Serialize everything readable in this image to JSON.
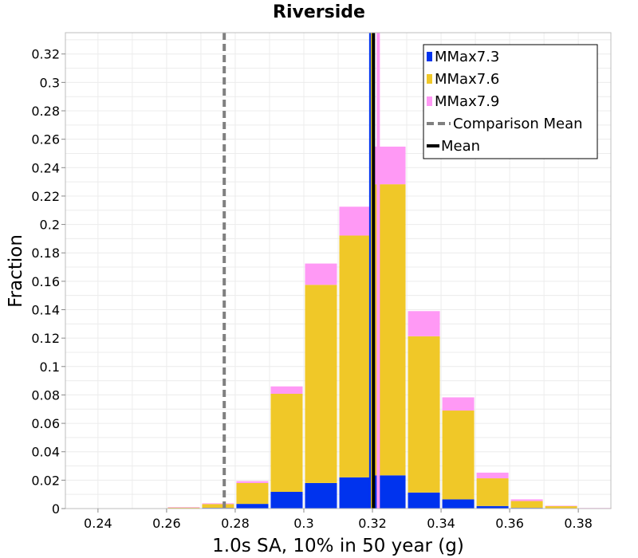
{
  "chart_data": {
    "type": "bar",
    "stacked": true,
    "title": "Riverside",
    "xlabel": "1.0s SA, 10% in 50 year (g)",
    "ylabel": "Fraction",
    "xlim": [
      0.2305,
      0.3895
    ],
    "ylim": [
      0,
      0.335
    ],
    "x_ticks": [
      "0.24",
      "0.26",
      "0.28",
      "0.3",
      "0.32",
      "0.34",
      "0.36",
      "0.38"
    ],
    "y_ticks": [
      "0",
      "0.02",
      "0.04",
      "0.06",
      "0.08",
      "0.1",
      "0.12",
      "0.14",
      "0.16",
      "0.18",
      "0.2",
      "0.22",
      "0.24",
      "0.26",
      "0.28",
      "0.3",
      "0.32"
    ],
    "grid": true,
    "legend_position": "top-right",
    "bin_width": 0.01,
    "x": [
      0.235,
      0.245,
      0.255,
      0.265,
      0.275,
      0.285,
      0.295,
      0.305,
      0.315,
      0.325,
      0.335,
      0.345,
      0.355,
      0.365,
      0.375,
      0.385
    ],
    "series": [
      {
        "name": "MMax7.3",
        "color": "#0033ee",
        "values": [
          0,
          0,
          0,
          0.0003,
          0.0005,
          0.0033,
          0.0118,
          0.018,
          0.022,
          0.0234,
          0.0113,
          0.0065,
          0.0018,
          0.0005,
          0.0002,
          0
        ]
      },
      {
        "name": "MMax7.6",
        "color": "#f0c828",
        "values": [
          0,
          0,
          0,
          0.0005,
          0.0027,
          0.0147,
          0.069,
          0.1395,
          0.1702,
          0.2049,
          0.11,
          0.0625,
          0.0195,
          0.0048,
          0.0015,
          0.0003
        ]
      },
      {
        "name": "MMax7.9",
        "color": "#ff99f5",
        "values": [
          0,
          0,
          0,
          0.0002,
          0.0005,
          0.0013,
          0.0052,
          0.015,
          0.0203,
          0.0265,
          0.0177,
          0.0093,
          0.004,
          0.0012,
          0.0003,
          0.0001
        ]
      }
    ],
    "vertical_lines": [
      {
        "name": "Comparison Mean",
        "x": 0.2768,
        "style": "dashed",
        "color": "#808080"
      },
      {
        "name": "Mean",
        "x": 0.3203,
        "style": "solid",
        "color": "#000000"
      }
    ],
    "series_means": [
      {
        "series": "MMax7.3",
        "x": 0.3195,
        "color": "#0033ee"
      },
      {
        "series": "MMax7.6",
        "x": 0.32,
        "color": "#f0c828"
      },
      {
        "series": "MMax7.9",
        "x": 0.3217,
        "color": "#ff99f5"
      }
    ]
  }
}
